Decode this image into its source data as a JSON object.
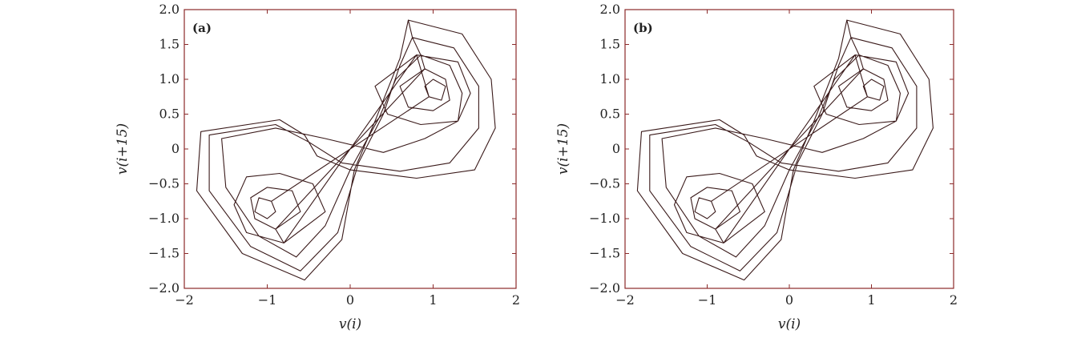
{
  "chart_data": [
    {
      "type": "line",
      "panel_label": "(a)",
      "xlabel": "v(i)",
      "ylabel": "v(i+15)",
      "xlim": [
        -2,
        2
      ],
      "ylim": [
        -2,
        2
      ],
      "xticks": [
        -2,
        -1,
        0,
        1,
        2
      ],
      "yticks": [
        -2.0,
        -1.5,
        -1.0,
        -0.5,
        0,
        0.5,
        1.0,
        1.5,
        2.0
      ],
      "xtick_labels": [
        "−2",
        "−1",
        "0",
        "1",
        "2"
      ],
      "ytick_labels": [
        "−2.0",
        "−1.5",
        "−1.0",
        "−0.5",
        "0",
        "0.5",
        "1.0",
        "1.5",
        "2.0"
      ],
      "grid": false,
      "line_color": "#3a1a1a",
      "axis_color": "#8b2a2a",
      "series": [
        {
          "points": [
            [
              0.7,
              1.85
            ],
            [
              1.35,
              1.65
            ],
            [
              1.7,
              1.0
            ],
            [
              1.75,
              0.3
            ],
            [
              1.5,
              -0.3
            ],
            [
              0.8,
              -0.42
            ],
            [
              0.0,
              -0.3
            ],
            [
              -0.4,
              -0.1
            ],
            [
              -0.55,
              0.2
            ],
            [
              -0.85,
              0.42
            ],
            [
              -1.8,
              0.25
            ],
            [
              -1.85,
              -0.6
            ],
            [
              -1.3,
              -1.5
            ],
            [
              -0.55,
              -1.88
            ],
            [
              -0.1,
              -1.3
            ],
            [
              0.05,
              -0.3
            ],
            [
              0.3,
              0.4
            ],
            [
              0.6,
              1.3
            ],
            [
              0.7,
              1.85
            ],
            [
              0.75,
              1.6
            ],
            [
              1.25,
              1.45
            ],
            [
              1.55,
              0.9
            ],
            [
              1.55,
              0.3
            ],
            [
              1.2,
              -0.2
            ],
            [
              0.6,
              -0.32
            ],
            [
              -0.1,
              -0.2
            ],
            [
              -0.5,
              0.1
            ],
            [
              -0.9,
              0.35
            ],
            [
              -1.7,
              0.2
            ],
            [
              -1.7,
              -0.6
            ],
            [
              -1.2,
              -1.4
            ],
            [
              -0.6,
              -1.75
            ],
            [
              -0.15,
              -1.2
            ],
            [
              0.1,
              -0.2
            ],
            [
              0.4,
              0.5
            ],
            [
              0.6,
              1.2
            ],
            [
              0.75,
              1.6
            ],
            [
              0.85,
              1.35
            ],
            [
              1.2,
              1.2
            ],
            [
              1.35,
              0.8
            ],
            [
              1.3,
              0.4
            ],
            [
              0.9,
              0.15
            ],
            [
              0.4,
              -0.05
            ],
            [
              -0.3,
              0.15
            ],
            [
              -0.9,
              0.3
            ],
            [
              -1.55,
              0.15
            ],
            [
              -1.5,
              -0.55
            ],
            [
              -1.1,
              -1.25
            ],
            [
              -0.65,
              -1.55
            ],
            [
              -0.3,
              -1.1
            ],
            [
              0.0,
              -0.3
            ],
            [
              0.35,
              0.45
            ],
            [
              0.55,
              1.0
            ],
            [
              0.85,
              1.35
            ],
            [
              0.9,
              1.15
            ],
            [
              1.15,
              1.0
            ],
            [
              1.2,
              0.7
            ],
            [
              1.0,
              0.55
            ],
            [
              0.7,
              0.6
            ],
            [
              0.6,
              0.9
            ],
            [
              0.9,
              1.15
            ],
            [
              -0.9,
              -1.15
            ],
            [
              -1.15,
              -1.0
            ],
            [
              -1.2,
              -0.7
            ],
            [
              -1.0,
              -0.55
            ],
            [
              -0.7,
              -0.6
            ],
            [
              -0.6,
              -0.9
            ],
            [
              -0.9,
              -1.15
            ],
            [
              -0.8,
              -1.35
            ],
            [
              -1.25,
              -1.2
            ],
            [
              -1.4,
              -0.8
            ],
            [
              -1.25,
              -0.4
            ],
            [
              -0.85,
              -0.35
            ],
            [
              -0.45,
              -0.5
            ],
            [
              -0.3,
              -0.9
            ],
            [
              -0.8,
              -1.35
            ],
            [
              0.8,
              1.35
            ],
            [
              1.3,
              1.25
            ],
            [
              1.45,
              0.8
            ],
            [
              1.3,
              0.4
            ],
            [
              0.85,
              0.35
            ],
            [
              0.45,
              0.5
            ],
            [
              0.3,
              0.9
            ],
            [
              0.8,
              1.35
            ],
            [
              0.95,
              0.75
            ],
            [
              1.1,
              0.7
            ],
            [
              1.15,
              0.9
            ],
            [
              1.0,
              1.0
            ],
            [
              0.9,
              0.9
            ],
            [
              0.95,
              0.75
            ],
            [
              -0.95,
              -0.75
            ],
            [
              -1.1,
              -0.7
            ],
            [
              -1.15,
              -0.9
            ],
            [
              -1.0,
              -1.0
            ],
            [
              -0.9,
              -0.9
            ],
            [
              -0.95,
              -0.75
            ]
          ]
        }
      ]
    },
    {
      "type": "line",
      "panel_label": "(b)",
      "xlabel": "v(i)",
      "ylabel": "v(i+15)",
      "xlim": [
        -2,
        2
      ],
      "ylim": [
        -2,
        2
      ],
      "xticks": [
        -2,
        -1,
        0,
        1,
        2
      ],
      "yticks": [
        -2.0,
        -1.5,
        -1.0,
        -0.5,
        0,
        0.5,
        1.0,
        1.5,
        2.0
      ],
      "xtick_labels": [
        "−2",
        "−1",
        "0",
        "1",
        "2"
      ],
      "ytick_labels": [
        "−2.0",
        "−1.5",
        "−1.0",
        "−0.5",
        "0",
        "0.5",
        "1.0",
        "1.5",
        "2.0"
      ],
      "grid": false,
      "line_color": "#3a1a1a",
      "axis_color": "#8b2a2a",
      "series": [
        {
          "points": [
            [
              0.7,
              1.85
            ],
            [
              1.35,
              1.65
            ],
            [
              1.7,
              1.0
            ],
            [
              1.75,
              0.3
            ],
            [
              1.5,
              -0.3
            ],
            [
              0.8,
              -0.42
            ],
            [
              0.0,
              -0.3
            ],
            [
              -0.4,
              -0.1
            ],
            [
              -0.55,
              0.2
            ],
            [
              -0.85,
              0.42
            ],
            [
              -1.8,
              0.25
            ],
            [
              -1.85,
              -0.6
            ],
            [
              -1.3,
              -1.5
            ],
            [
              -0.55,
              -1.88
            ],
            [
              -0.1,
              -1.3
            ],
            [
              0.05,
              -0.3
            ],
            [
              0.3,
              0.4
            ],
            [
              0.6,
              1.3
            ],
            [
              0.7,
              1.85
            ],
            [
              0.75,
              1.6
            ],
            [
              1.25,
              1.45
            ],
            [
              1.55,
              0.9
            ],
            [
              1.55,
              0.3
            ],
            [
              1.2,
              -0.2
            ],
            [
              0.6,
              -0.32
            ],
            [
              -0.1,
              -0.2
            ],
            [
              -0.5,
              0.1
            ],
            [
              -0.9,
              0.35
            ],
            [
              -1.7,
              0.2
            ],
            [
              -1.7,
              -0.6
            ],
            [
              -1.2,
              -1.4
            ],
            [
              -0.6,
              -1.75
            ],
            [
              -0.15,
              -1.2
            ],
            [
              0.1,
              -0.2
            ],
            [
              0.4,
              0.5
            ],
            [
              0.6,
              1.2
            ],
            [
              0.75,
              1.6
            ],
            [
              0.85,
              1.35
            ],
            [
              1.2,
              1.2
            ],
            [
              1.35,
              0.8
            ],
            [
              1.3,
              0.4
            ],
            [
              0.9,
              0.15
            ],
            [
              0.4,
              -0.05
            ],
            [
              -0.3,
              0.15
            ],
            [
              -0.9,
              0.3
            ],
            [
              -1.55,
              0.15
            ],
            [
              -1.5,
              -0.55
            ],
            [
              -1.1,
              -1.25
            ],
            [
              -0.65,
              -1.55
            ],
            [
              -0.3,
              -1.1
            ],
            [
              0.0,
              -0.3
            ],
            [
              0.35,
              0.45
            ],
            [
              0.55,
              1.0
            ],
            [
              0.85,
              1.35
            ],
            [
              0.9,
              1.15
            ],
            [
              1.15,
              1.0
            ],
            [
              1.2,
              0.7
            ],
            [
              1.0,
              0.55
            ],
            [
              0.7,
              0.6
            ],
            [
              0.6,
              0.9
            ],
            [
              0.9,
              1.15
            ],
            [
              -0.9,
              -1.15
            ],
            [
              -1.15,
              -1.0
            ],
            [
              -1.2,
              -0.7
            ],
            [
              -1.0,
              -0.55
            ],
            [
              -0.7,
              -0.6
            ],
            [
              -0.6,
              -0.9
            ],
            [
              -0.9,
              -1.15
            ],
            [
              -0.8,
              -1.35
            ],
            [
              -1.25,
              -1.2
            ],
            [
              -1.4,
              -0.8
            ],
            [
              -1.25,
              -0.4
            ],
            [
              -0.85,
              -0.35
            ],
            [
              -0.45,
              -0.5
            ],
            [
              -0.3,
              -0.9
            ],
            [
              -0.8,
              -1.35
            ],
            [
              0.8,
              1.35
            ],
            [
              1.3,
              1.25
            ],
            [
              1.45,
              0.8
            ],
            [
              1.3,
              0.4
            ],
            [
              0.85,
              0.35
            ],
            [
              0.45,
              0.5
            ],
            [
              0.3,
              0.9
            ],
            [
              0.8,
              1.35
            ],
            [
              0.95,
              0.75
            ],
            [
              1.1,
              0.7
            ],
            [
              1.15,
              0.9
            ],
            [
              1.0,
              1.0
            ],
            [
              0.9,
              0.9
            ],
            [
              0.95,
              0.75
            ],
            [
              -0.95,
              -0.75
            ],
            [
              -1.1,
              -0.7
            ],
            [
              -1.15,
              -0.9
            ],
            [
              -1.0,
              -1.0
            ],
            [
              -0.9,
              -0.9
            ],
            [
              -0.95,
              -0.75
            ]
          ]
        }
      ]
    }
  ]
}
